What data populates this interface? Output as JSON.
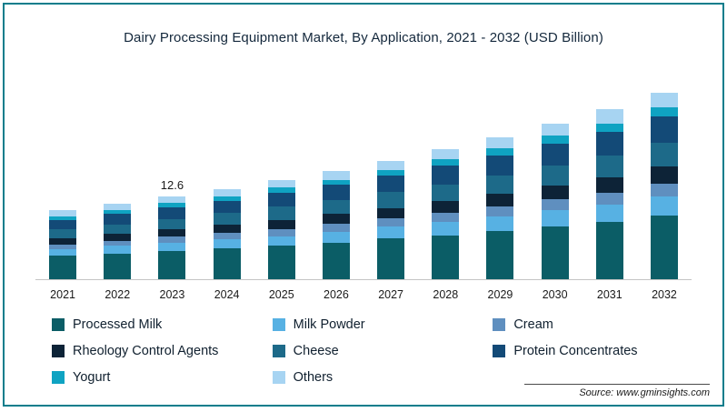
{
  "frame": {
    "border_color": "#0a7d8c"
  },
  "title": "Dairy Processing Equipment Market, By Application, 2021 - 2032 (USD Billion)",
  "source": "Source: www.gminsights.com",
  "chart_data": {
    "type": "bar",
    "stacked": true,
    "grid": false,
    "legend_position": "bottom",
    "unit": "USD Billion",
    "categories": [
      "2021",
      "2022",
      "2023",
      "2024",
      "2025",
      "2026",
      "2027",
      "2028",
      "2029",
      "2030",
      "2031",
      "2032"
    ],
    "series": [
      {
        "name": "Processed Milk",
        "color": "#0b5d66",
        "values": [
          3.6,
          3.9,
          4.3,
          4.7,
          5.1,
          5.6,
          6.2,
          6.7,
          7.4,
          8.1,
          8.8,
          9.7
        ]
      },
      {
        "name": "Milk Powder",
        "color": "#57b1e3",
        "values": [
          1.0,
          1.2,
          1.3,
          1.4,
          1.5,
          1.7,
          1.8,
          2.0,
          2.2,
          2.4,
          2.6,
          2.9
        ]
      },
      {
        "name": "Cream",
        "color": "#5f8fbf",
        "values": [
          0.7,
          0.8,
          0.9,
          1.0,
          1.1,
          1.2,
          1.3,
          1.4,
          1.5,
          1.7,
          1.8,
          2.0
        ]
      },
      {
        "name": "Rheology Control Agents",
        "color": "#0d2337",
        "values": [
          0.9,
          1.0,
          1.1,
          1.2,
          1.4,
          1.5,
          1.6,
          1.8,
          2.0,
          2.1,
          2.3,
          2.6
        ]
      },
      {
        "name": "Cheese",
        "color": "#1d6a89",
        "values": [
          1.4,
          1.5,
          1.6,
          1.8,
          2.0,
          2.1,
          2.4,
          2.6,
          2.8,
          3.1,
          3.4,
          3.7
        ]
      },
      {
        "name": "Protein Concentrates",
        "color": "#134a77",
        "values": [
          1.5,
          1.6,
          1.8,
          1.9,
          2.1,
          2.3,
          2.5,
          2.8,
          3.0,
          3.3,
          3.6,
          4.0
        ]
      },
      {
        "name": "Yogurt",
        "color": "#0fa3c2",
        "values": [
          0.5,
          0.6,
          0.6,
          0.7,
          0.8,
          0.8,
          0.9,
          1.0,
          1.1,
          1.2,
          1.3,
          1.4
        ]
      },
      {
        "name": "Others",
        "color": "#a7d4f2",
        "values": [
          0.9,
          0.9,
          1.0,
          1.1,
          1.2,
          1.3,
          1.4,
          1.5,
          1.7,
          1.9,
          2.2,
          2.2
        ]
      }
    ],
    "totals": [
      10.5,
      11.5,
      12.6,
      13.8,
      15.2,
      16.5,
      18.1,
      19.8,
      21.7,
      23.8,
      26.0,
      28.5
    ],
    "bar_total_labels": {
      "2023": "12.6"
    },
    "ylim": [
      0,
      30
    ]
  }
}
